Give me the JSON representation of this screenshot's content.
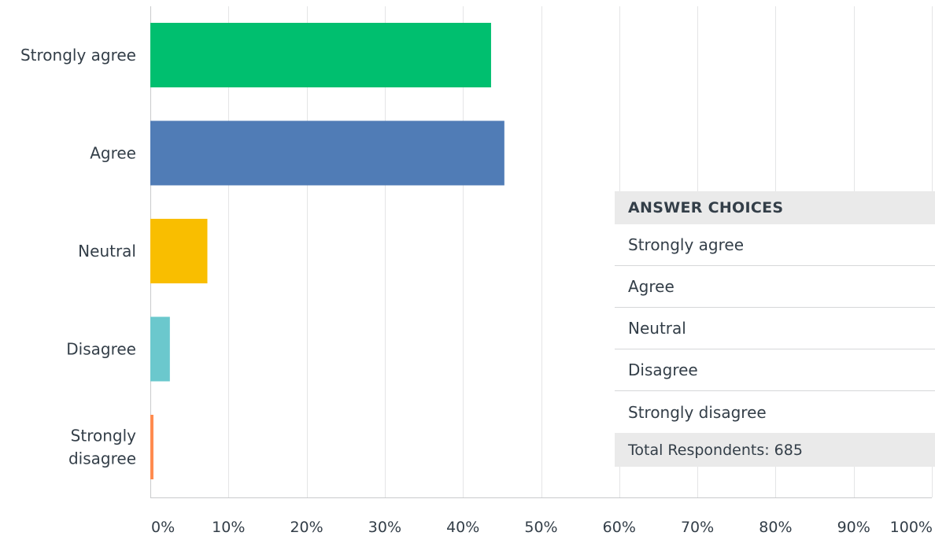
{
  "chart_data": {
    "type": "bar",
    "orientation": "horizontal",
    "categories": [
      "Strongly agree",
      "Agree",
      "Neutral",
      "Disagree",
      "Strongly disagree"
    ],
    "category_lines": [
      [
        "Strongly agree"
      ],
      [
        "Agree"
      ],
      [
        "Neutral"
      ],
      [
        "Disagree"
      ],
      [
        "Strongly",
        "disagree"
      ]
    ],
    "values": [
      43.6,
      45.3,
      7.3,
      2.5,
      0.4
    ],
    "value_unit": "%",
    "xlim": [
      0,
      100
    ],
    "x_ticks": [
      "0%",
      "10%",
      "20%",
      "30%",
      "40%",
      "50%",
      "60%",
      "70%",
      "80%",
      "90%",
      "100%"
    ],
    "grid": true,
    "colors": [
      "#00bf6f",
      "#507cb6",
      "#f9be00",
      "#6bc8cd",
      "#ff8b4f"
    ],
    "title": "",
    "xlabel": "",
    "ylabel": ""
  },
  "answer_table": {
    "header": "ANSWER CHOICES",
    "rows": [
      "Strongly agree",
      "Agree",
      "Neutral",
      "Disagree",
      "Strongly disagree"
    ],
    "total": "Total Respondents: 685"
  }
}
